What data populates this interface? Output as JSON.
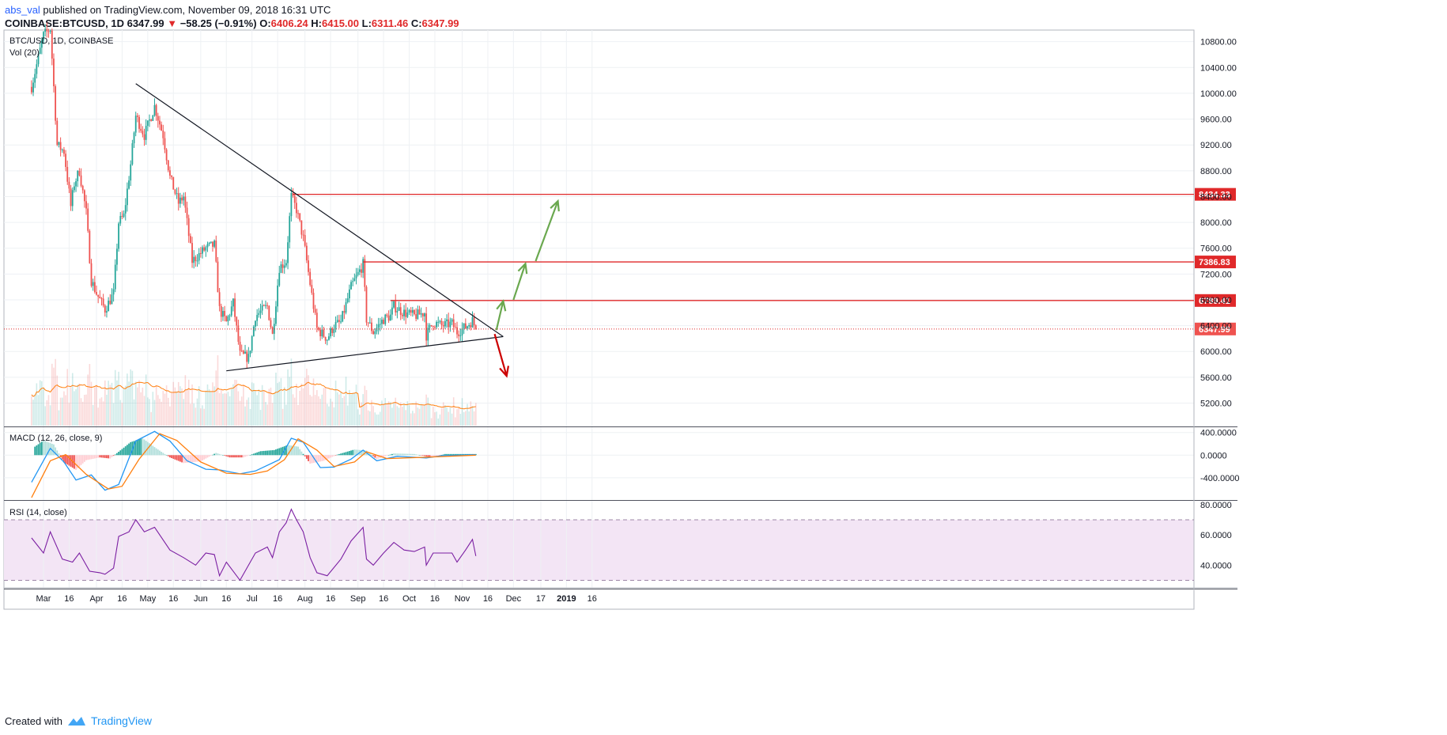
{
  "header": {
    "user": "abs_val",
    "published": " published on TradingView.com, November 09, 2018 16:31 UTC",
    "symbol": "COINBASE:BTCUSD, 1D",
    "last": "6347.99",
    "arrow": "▼",
    "change": "−58.25 (−0.91%)",
    "o_label": "O:",
    "o_value": "6406.24",
    "h_label": "H:",
    "h_value": "6415.00",
    "l_label": "L:",
    "l_value": "6311.46",
    "c_label": "C:",
    "c_value": "6347.99"
  },
  "footer": {
    "created_with": "Created with",
    "brand": "TradingView"
  },
  "colors": {
    "up": "#26a69a",
    "down": "#ef5350",
    "level": "#e0292a",
    "bullish_arrow": "#6aa84f",
    "bearish_arrow": "#cc0000",
    "macd_line": "#2196f3",
    "signal_line": "#ff7f0e",
    "rsi_line": "#7b1fa2",
    "rsi_band": "#f3e5f5",
    "volume_ma": "#ff7f0e"
  },
  "chart_data": [
    {
      "type": "candlestick",
      "title": "BTC/USD, 1D, COINBASE",
      "volume_label": "Vol (20)",
      "y_ticks": [
        5200,
        5600,
        6000,
        6400,
        6800,
        7200,
        7600,
        8000,
        8400,
        8800,
        9200,
        9600,
        10000,
        10400,
        10800
      ],
      "y_range": [
        4850,
        10980
      ],
      "x_ticks": [
        "Mar",
        "16",
        "Apr",
        "16",
        "May",
        "16",
        "Jun",
        "16",
        "Jul",
        "16",
        "Aug",
        "16",
        "Sep",
        "16",
        "Oct",
        "16",
        "Nov",
        "16",
        "Dec",
        "17",
        "2019",
        "16"
      ],
      "current_price": {
        "label": "6347.99",
        "value": 6347.99
      },
      "levels": [
        {
          "label": "8434.33",
          "value": 8434.33,
          "from": "2018-07-25"
        },
        {
          "label": "7386.83",
          "value": 7386.83,
          "from": "2018-09-04"
        },
        {
          "label": "6789.41",
          "value": 6789.41,
          "from": "2018-09-20"
        }
      ],
      "trendlines": [
        {
          "name": "descending resistance",
          "points": [
            [
              "2018-04-24",
              10150
            ],
            [
              "2018-11-25",
              6230
            ]
          ]
        },
        {
          "name": "ascending support",
          "points": [
            [
              "2018-06-16",
              5700
            ],
            [
              "2018-11-25",
              6230
            ]
          ]
        }
      ],
      "arrows": [
        {
          "direction": "up",
          "points": [
            [
              "2018-11-21",
              6330
            ],
            [
              "2018-11-25",
              6780
            ]
          ]
        },
        {
          "direction": "up",
          "points": [
            [
              "2018-12-01",
              6800
            ],
            [
              "2018-12-08",
              7360
            ]
          ]
        },
        {
          "direction": "up",
          "points": [
            [
              "2018-12-14",
              7400
            ],
            [
              "2018-12-27",
              8330
            ]
          ]
        },
        {
          "direction": "down",
          "points": [
            [
              "2018-11-20",
              6270
            ],
            [
              "2018-11-27",
              5620
            ]
          ]
        }
      ],
      "ohlc_anchors": [
        [
          "2018-02-22",
          10100
        ],
        [
          "2018-03-01",
          10900
        ],
        [
          "2018-03-05",
          11000
        ],
        [
          "2018-03-09",
          9200
        ],
        [
          "2018-03-13",
          9100
        ],
        [
          "2018-03-17",
          8250
        ],
        [
          "2018-03-19",
          8600
        ],
        [
          "2018-03-22",
          8800
        ],
        [
          "2018-03-26",
          8150
        ],
        [
          "2018-03-29",
          7100
        ],
        [
          "2018-04-01",
          6900
        ],
        [
          "2018-04-06",
          6650
        ],
        [
          "2018-04-11",
          6900
        ],
        [
          "2018-04-14",
          8000
        ],
        [
          "2018-04-17",
          8100
        ],
        [
          "2018-04-21",
          8900
        ],
        [
          "2018-04-24",
          9650
        ],
        [
          "2018-04-29",
          9350
        ],
        [
          "2018-05-05",
          9800
        ],
        [
          "2018-05-10",
          9350
        ],
        [
          "2018-05-14",
          8700
        ],
        [
          "2018-05-19",
          8300
        ],
        [
          "2018-05-22",
          8400
        ],
        [
          "2018-05-27",
          7400
        ],
        [
          "2018-05-31",
          7500
        ],
        [
          "2018-06-04",
          7600
        ],
        [
          "2018-06-09",
          7650
        ],
        [
          "2018-06-12",
          6650
        ],
        [
          "2018-06-16",
          6450
        ],
        [
          "2018-06-20",
          6750
        ],
        [
          "2018-06-24",
          5950
        ],
        [
          "2018-06-29",
          5900
        ],
        [
          "2018-07-03",
          6550
        ],
        [
          "2018-07-10",
          6700
        ],
        [
          "2018-07-13",
          6250
        ],
        [
          "2018-07-17",
          7300
        ],
        [
          "2018-07-21",
          7400
        ],
        [
          "2018-07-24",
          8400
        ],
        [
          "2018-07-27",
          8200
        ],
        [
          "2018-07-31",
          7750
        ],
        [
          "2018-08-04",
          7050
        ],
        [
          "2018-08-08",
          6350
        ],
        [
          "2018-08-14",
          6200
        ],
        [
          "2018-08-18",
          6400
        ],
        [
          "2018-08-22",
          6450
        ],
        [
          "2018-08-28",
          7000
        ],
        [
          "2018-09-04",
          7350
        ],
        [
          "2018-09-06",
          6500
        ],
        [
          "2018-09-10",
          6300
        ],
        [
          "2018-09-16",
          6500
        ],
        [
          "2018-09-20",
          6550
        ],
        [
          "2018-09-22",
          6700
        ],
        [
          "2018-09-28",
          6600
        ],
        [
          "2018-10-04",
          6550
        ],
        [
          "2018-10-10",
          6600
        ],
        [
          "2018-10-11",
          6250
        ],
        [
          "2018-10-15",
          6450
        ],
        [
          "2018-10-20",
          6400
        ],
        [
          "2018-10-26",
          6430
        ],
        [
          "2018-10-29",
          6300
        ],
        [
          "2018-11-03",
          6380
        ],
        [
          "2018-11-07",
          6480
        ],
        [
          "2018-11-09",
          6347.99
        ]
      ]
    },
    {
      "type": "line",
      "title": "MACD (12, 26, close, 9)",
      "y_ticks": [
        "400.0000",
        "0.0000",
        "-400.0000"
      ],
      "y_tick_values": [
        400,
        0,
        -400
      ],
      "y_range": [
        -780,
        480
      ],
      "series": [
        {
          "role": "macd",
          "points": [
            [
              "2018-02-22",
              -480
            ],
            [
              "2018-03-05",
              120
            ],
            [
              "2018-03-13",
              -120
            ],
            [
              "2018-03-20",
              -440
            ],
            [
              "2018-03-29",
              -350
            ],
            [
              "2018-04-06",
              -620
            ],
            [
              "2018-04-14",
              -520
            ],
            [
              "2018-04-24",
              250
            ],
            [
              "2018-05-05",
              420
            ],
            [
              "2018-05-14",
              250
            ],
            [
              "2018-05-24",
              -100
            ],
            [
              "2018-06-04",
              -250
            ],
            [
              "2018-06-12",
              -260
            ],
            [
              "2018-06-24",
              -330
            ],
            [
              "2018-07-03",
              -280
            ],
            [
              "2018-07-17",
              -80
            ],
            [
              "2018-07-24",
              300
            ],
            [
              "2018-07-31",
              230
            ],
            [
              "2018-08-10",
              -220
            ],
            [
              "2018-08-18",
              -210
            ],
            [
              "2018-08-28",
              -70
            ],
            [
              "2018-09-04",
              90
            ],
            [
              "2018-09-12",
              -100
            ],
            [
              "2018-09-24",
              -20
            ],
            [
              "2018-10-11",
              -50
            ],
            [
              "2018-10-20",
              -10
            ],
            [
              "2018-11-09",
              10
            ]
          ]
        },
        {
          "role": "signal",
          "points": [
            [
              "2018-02-22",
              -750
            ],
            [
              "2018-03-05",
              -100
            ],
            [
              "2018-03-14",
              10
            ],
            [
              "2018-03-26",
              -340
            ],
            [
              "2018-04-08",
              -600
            ],
            [
              "2018-04-16",
              -550
            ],
            [
              "2018-04-26",
              -70
            ],
            [
              "2018-05-08",
              380
            ],
            [
              "2018-05-18",
              260
            ],
            [
              "2018-06-01",
              -120
            ],
            [
              "2018-06-16",
              -320
            ],
            [
              "2018-06-30",
              -340
            ],
            [
              "2018-07-10",
              -280
            ],
            [
              "2018-07-20",
              -80
            ],
            [
              "2018-07-28",
              290
            ],
            [
              "2018-08-08",
              90
            ],
            [
              "2018-08-18",
              -200
            ],
            [
              "2018-08-30",
              -120
            ],
            [
              "2018-09-06",
              60
            ],
            [
              "2018-09-18",
              -60
            ],
            [
              "2018-10-08",
              -40
            ],
            [
              "2018-11-09",
              0
            ]
          ]
        }
      ],
      "histogram": [
        [
          "2018-02-24",
          150
        ],
        [
          "2018-03-01",
          260
        ],
        [
          "2018-03-07",
          190
        ],
        [
          "2018-03-13",
          -130
        ],
        [
          "2018-03-20",
          -260
        ],
        [
          "2018-03-26",
          -90
        ],
        [
          "2018-04-03",
          -40
        ],
        [
          "2018-04-09",
          -60
        ],
        [
          "2018-04-14",
          60
        ],
        [
          "2018-04-21",
          230
        ],
        [
          "2018-04-28",
          300
        ],
        [
          "2018-05-06",
          120
        ],
        [
          "2018-05-14",
          -40
        ],
        [
          "2018-05-22",
          -140
        ],
        [
          "2018-06-01",
          -110
        ],
        [
          "2018-06-10",
          40
        ],
        [
          "2018-06-18",
          -40
        ],
        [
          "2018-06-26",
          -40
        ],
        [
          "2018-07-06",
          70
        ],
        [
          "2018-07-14",
          90
        ],
        [
          "2018-07-22",
          180
        ],
        [
          "2018-07-28",
          150
        ],
        [
          "2018-08-04",
          -150
        ],
        [
          "2018-08-12",
          -100
        ],
        [
          "2018-08-20",
          10
        ],
        [
          "2018-08-30",
          100
        ],
        [
          "2018-09-06",
          80
        ],
        [
          "2018-09-12",
          -70
        ],
        [
          "2018-09-22",
          30
        ],
        [
          "2018-10-04",
          20
        ],
        [
          "2018-10-14",
          -40
        ],
        [
          "2018-10-22",
          20
        ],
        [
          "2018-11-06",
          20
        ]
      ]
    },
    {
      "type": "line",
      "title": "RSI (14, close)",
      "y_ticks": [
        "80.0000",
        "60.0000",
        "40.0000"
      ],
      "y_tick_values": [
        80,
        60,
        40
      ],
      "y_range": [
        25,
        82
      ],
      "band": [
        30,
        70
      ],
      "series": [
        {
          "role": "rsi",
          "points": [
            [
              "2018-02-22",
              58
            ],
            [
              "2018-03-01",
              48
            ],
            [
              "2018-03-05",
              62
            ],
            [
              "2018-03-12",
              44
            ],
            [
              "2018-03-18",
              42
            ],
            [
              "2018-03-22",
              48
            ],
            [
              "2018-03-28",
              36
            ],
            [
              "2018-04-03",
              35
            ],
            [
              "2018-04-06",
              34
            ],
            [
              "2018-04-11",
              38
            ],
            [
              "2018-04-14",
              59
            ],
            [
              "2018-04-20",
              62
            ],
            [
              "2018-04-24",
              70
            ],
            [
              "2018-04-29",
              62
            ],
            [
              "2018-05-05",
              65
            ],
            [
              "2018-05-14",
              50
            ],
            [
              "2018-05-22",
              45
            ],
            [
              "2018-05-29",
              40
            ],
            [
              "2018-06-04",
              48
            ],
            [
              "2018-06-09",
              47
            ],
            [
              "2018-06-12",
              33
            ],
            [
              "2018-06-16",
              42
            ],
            [
              "2018-06-24",
              30
            ],
            [
              "2018-07-03",
              48
            ],
            [
              "2018-07-10",
              52
            ],
            [
              "2018-07-13",
              45
            ],
            [
              "2018-07-17",
              62
            ],
            [
              "2018-07-21",
              68
            ],
            [
              "2018-07-24",
              77
            ],
            [
              "2018-07-27",
              70
            ],
            [
              "2018-07-31",
              62
            ],
            [
              "2018-08-04",
              45
            ],
            [
              "2018-08-08",
              35
            ],
            [
              "2018-08-14",
              33
            ],
            [
              "2018-08-22",
              44
            ],
            [
              "2018-08-28",
              56
            ],
            [
              "2018-09-04",
              65
            ],
            [
              "2018-09-06",
              44
            ],
            [
              "2018-09-10",
              40
            ],
            [
              "2018-09-16",
              48
            ],
            [
              "2018-09-22",
              55
            ],
            [
              "2018-09-28",
              50
            ],
            [
              "2018-10-04",
              49
            ],
            [
              "2018-10-10",
              52
            ],
            [
              "2018-10-11",
              40
            ],
            [
              "2018-10-15",
              48
            ],
            [
              "2018-10-22",
              48
            ],
            [
              "2018-10-26",
              48
            ],
            [
              "2018-10-29",
              42
            ],
            [
              "2018-11-03",
              50
            ],
            [
              "2018-11-07",
              57
            ],
            [
              "2018-11-09",
              46
            ]
          ]
        }
      ]
    }
  ]
}
